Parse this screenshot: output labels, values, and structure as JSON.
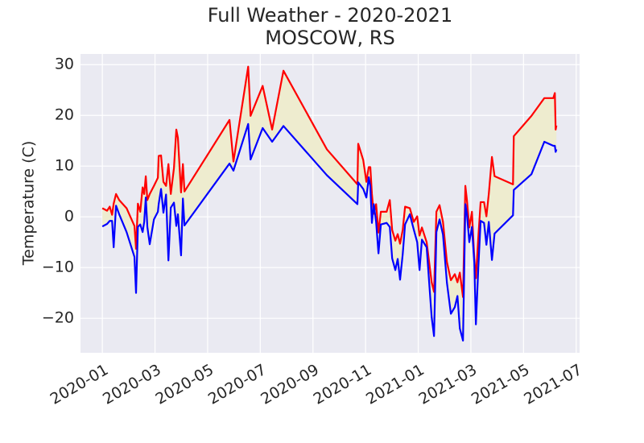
{
  "chart_data": {
    "type": "line",
    "title": "Full Weather - 2020-2021",
    "subtitle": "MOSCOW, RS",
    "ylabel": "Temperature (C)",
    "x": [
      0,
      0.18,
      0.28,
      0.37,
      0.43,
      0.52,
      0.64,
      0.92,
      1.22,
      1.28,
      1.35,
      1.44,
      1.53,
      1.59,
      1.65,
      1.71,
      1.8,
      1.96,
      2.11,
      2.14,
      2.23,
      2.32,
      2.42,
      2.51,
      2.6,
      2.72,
      2.81,
      2.87,
      2.99,
      3.06,
      3.12,
      4.83,
      4.98,
      5.54,
      5.63,
      6.09,
      6.45,
      6.88,
      8.53,
      9.69,
      9.72,
      9.91,
      10.03,
      10.12,
      10.18,
      10.24,
      10.31,
      10.4,
      10.49,
      10.58,
      10.8,
      10.92,
      11.01,
      11.13,
      11.22,
      11.31,
      11.41,
      11.5,
      11.68,
      11.83,
      11.96,
      12.05,
      12.14,
      12.32,
      12.51,
      12.6,
      12.69,
      12.81,
      12.94,
      13.09,
      13.24,
      13.39,
      13.49,
      13.58,
      13.7,
      13.79,
      13.85,
      13.94,
      14.04,
      14.13,
      14.19,
      14.28,
      14.37,
      14.5,
      14.59,
      14.68,
      14.8,
      14.9,
      15.6,
      15.63,
      16.3,
      16.79,
      17.13,
      17.19,
      17.22,
      17.25
    ],
    "series": [
      {
        "color": "#ff0000",
        "values": [
          1.7,
          1.2,
          2.0,
          0.4,
          2.6,
          4.5,
          3.3,
          1.7,
          -1.8,
          -6.3,
          2.6,
          1.0,
          5.8,
          4.5,
          8.0,
          3.3,
          4.5,
          6.1,
          7.7,
          12.0,
          12.1,
          6.9,
          6.1,
          10.4,
          4.5,
          9.6,
          17.2,
          15.6,
          4.8,
          10.4,
          5.0,
          19.1,
          10.9,
          29.6,
          19.9,
          25.8,
          17.2,
          28.8,
          13.3,
          6.4,
          14.4,
          11.2,
          6.9,
          9.8,
          9.8,
          4.5,
          0.6,
          2.5,
          -3.1,
          1.0,
          1.0,
          3.3,
          -2.6,
          -4.7,
          -3.4,
          -5.3,
          -2.6,
          2.0,
          1.7,
          -1.0,
          0.1,
          -3.7,
          -2.1,
          -5.0,
          -12.9,
          -14.8,
          1.0,
          2.3,
          -1.0,
          -8.9,
          -12.5,
          -11.3,
          -12.9,
          -11.0,
          -15.8,
          6.1,
          3.3,
          -2.1,
          1.0,
          -8.2,
          -12.1,
          -4.2,
          2.9,
          2.9,
          0.1,
          4.5,
          11.8,
          8.0,
          6.4,
          15.9,
          19.9,
          23.4,
          23.4,
          24.4,
          17.2,
          18.0
        ]
      },
      {
        "color": "#0000ff",
        "values": [
          -1.9,
          -1.4,
          -0.8,
          -0.8,
          -6.0,
          2.2,
          0.5,
          -3.0,
          -7.9,
          -15.0,
          -2.0,
          -1.5,
          -3.0,
          -1.0,
          3.8,
          -2.0,
          -5.4,
          -0.5,
          1.0,
          2.5,
          5.5,
          0.8,
          4.4,
          -8.6,
          1.8,
          2.8,
          -1.8,
          0.5,
          -7.6,
          3.6,
          -1.7,
          10.5,
          9.1,
          18.3,
          11.3,
          17.5,
          14.8,
          17.9,
          8.2,
          2.5,
          6.8,
          5.5,
          3.8,
          7.8,
          6.0,
          -1.2,
          2.5,
          -1.0,
          -7.2,
          -1.5,
          -1.2,
          -2.0,
          -8.2,
          -10.5,
          -8.3,
          -12.4,
          -7.4,
          -1.5,
          0.5,
          -2.5,
          -5.0,
          -10.5,
          -4.5,
          -6.0,
          -19.8,
          -23.5,
          -3.0,
          -0.5,
          -3.5,
          -13.0,
          -19.1,
          -17.8,
          -15.6,
          -22.0,
          -24.4,
          2.5,
          0.5,
          -5.0,
          -2.0,
          -9.0,
          -21.2,
          -10.3,
          -0.8,
          -1.2,
          -5.5,
          -1.0,
          -8.5,
          -3.3,
          0.3,
          5.3,
          8.4,
          14.8,
          14.0,
          14.0,
          12.8,
          13.3
        ]
      }
    ],
    "fill_between": true,
    "fill_color": "#eeeccf",
    "xlim": [
      -0.83,
      18.13
    ],
    "xticks": [
      {
        "value": 0,
        "label": "2020-01"
      },
      {
        "value": 2,
        "label": "2020-03"
      },
      {
        "value": 4,
        "label": "2020-05"
      },
      {
        "value": 6,
        "label": "2020-07"
      },
      {
        "value": 8,
        "label": "2020-09"
      },
      {
        "value": 10,
        "label": "2020-11"
      },
      {
        "value": 12,
        "label": "2021-01"
      },
      {
        "value": 14,
        "label": "2021-03"
      },
      {
        "value": 16,
        "label": "2021-05"
      },
      {
        "value": 18,
        "label": "2021-07"
      }
    ],
    "ylim": [
      -26.8,
      32.1
    ],
    "yticks": [
      {
        "value": -20,
        "label": "−20"
      },
      {
        "value": -10,
        "label": "−10"
      },
      0,
      10,
      20,
      30
    ],
    "grid": true
  }
}
